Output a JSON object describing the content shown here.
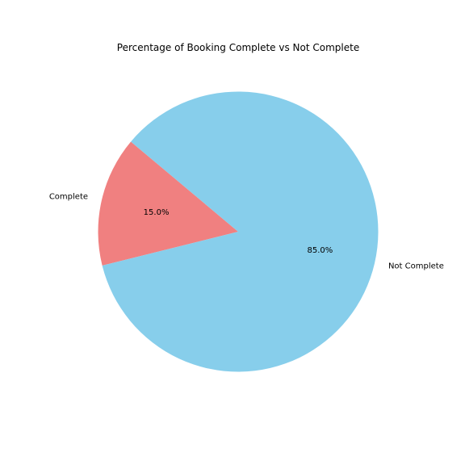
{
  "chart_data": {
    "type": "pie",
    "title": "Percentage of Booking Complete vs Not Complete",
    "slices": [
      {
        "label": "Complete",
        "value": 15.0,
        "pct_label": "15.0%",
        "color": "#F08080"
      },
      {
        "label": "Not Complete",
        "value": 85.0,
        "pct_label": "85.0%",
        "color": "#87CEEB"
      }
    ],
    "start_angle_deg": 140,
    "legend": "none"
  }
}
